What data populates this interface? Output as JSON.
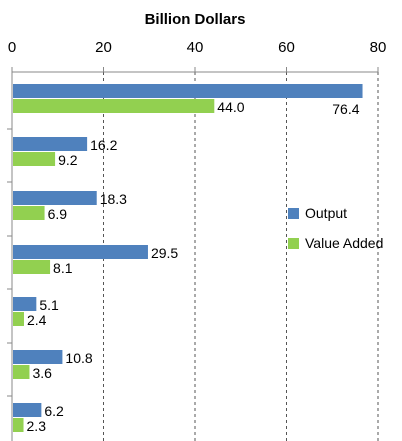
{
  "chart_data": {
    "type": "bar",
    "orientation": "horizontal",
    "title": "",
    "xlabel": "Billion Dollars",
    "ylabel": "",
    "xlim": [
      0,
      80
    ],
    "xticks": [
      0,
      20,
      40,
      60,
      80
    ],
    "grid": "vertical-dashed",
    "categories": [
      "",
      "",
      "",
      "",
      "",
      "",
      ""
    ],
    "series": [
      {
        "name": "Output",
        "color": "#4F81BD",
        "values": [
          76.4,
          16.2,
          18.3,
          29.5,
          5.1,
          10.8,
          6.2
        ]
      },
      {
        "name": "Value Added",
        "color": "#92D050",
        "values": [
          44.0,
          9.2,
          6.9,
          8.1,
          2.4,
          3.6,
          2.3
        ]
      }
    ],
    "data_labels": [
      [
        "76.4",
        "16.2",
        "18.3",
        "29.5",
        "5.1",
        "10.8",
        "6.2"
      ],
      [
        "44.0",
        "9.2",
        "6.9",
        "8.1",
        "2.4",
        "3.6",
        "2.3"
      ]
    ],
    "legend": "right"
  }
}
